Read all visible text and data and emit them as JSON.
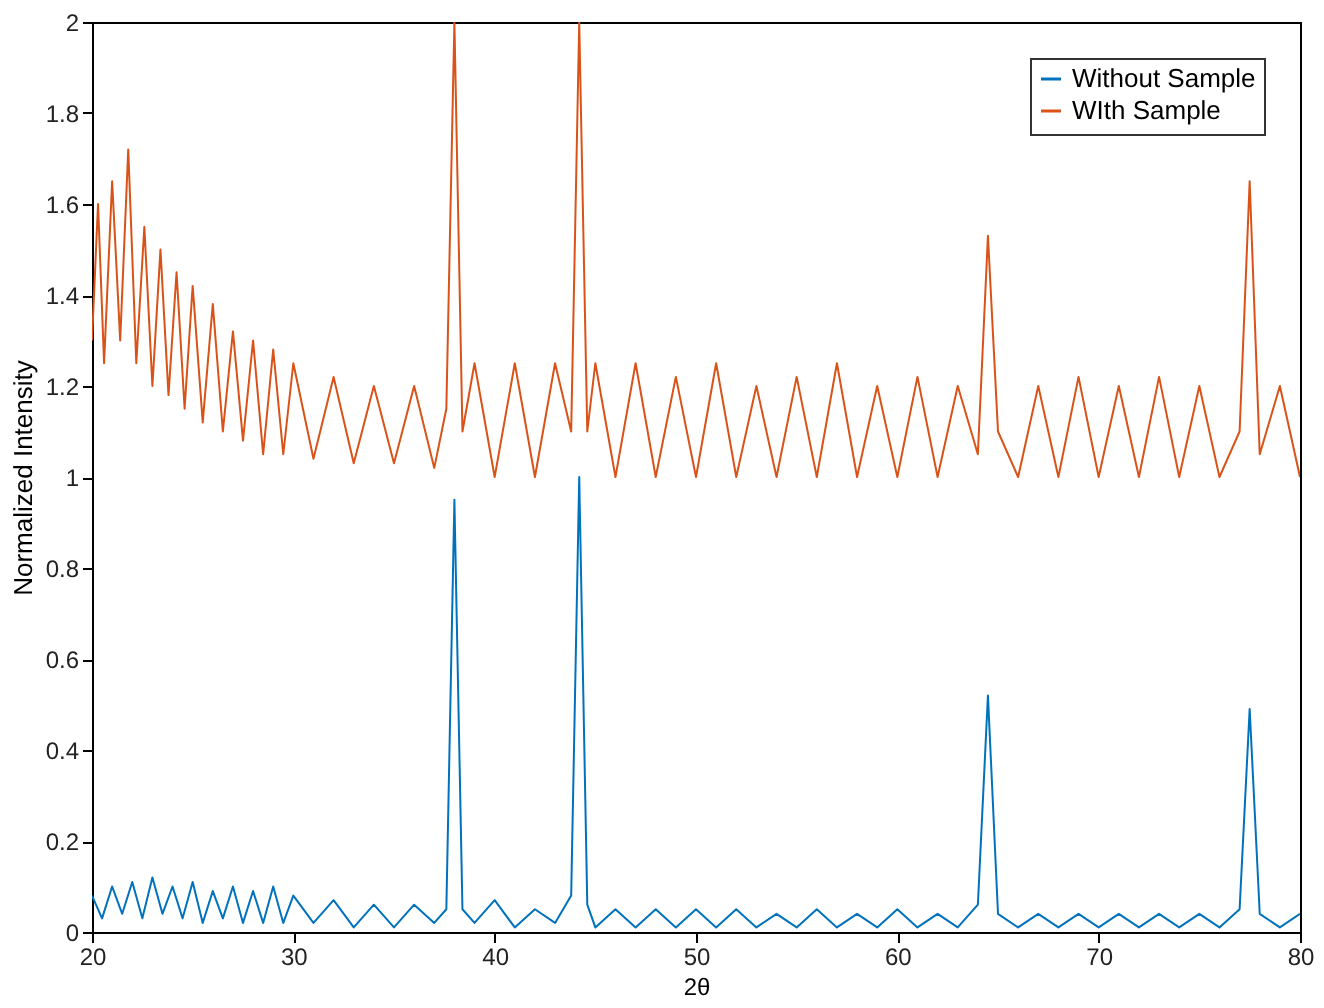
{
  "chart_data": {
    "type": "line",
    "xlabel": "2θ",
    "ylabel": "Normalized Intensity",
    "xlim": [
      20,
      80
    ],
    "xticks": [
      20,
      30,
      40,
      50,
      60,
      70,
      80
    ],
    "ylim": [
      0,
      2
    ],
    "yticks": [
      0,
      0.2,
      0.4,
      0.6,
      0.8,
      1,
      1.2,
      1.4,
      1.6,
      1.8,
      2
    ],
    "grid": false,
    "legend": "top right",
    "line_style": "solid",
    "marker": "none",
    "series": [
      {
        "name": "Without Sample",
        "color": "#0072bd",
        "x": [
          20,
          20.5,
          21,
          21.5,
          22,
          22.5,
          23,
          23.5,
          24,
          24.5,
          25,
          25.5,
          26,
          26.5,
          27,
          27.5,
          28,
          28.5,
          29,
          29.5,
          30,
          31,
          32,
          33,
          34,
          35,
          36,
          37,
          37.6,
          38.0,
          38.4,
          39,
          40,
          41,
          42,
          43,
          43.8,
          44.2,
          44.6,
          45,
          46,
          47,
          48,
          49,
          50,
          51,
          52,
          53,
          54,
          55,
          56,
          57,
          58,
          59,
          60,
          61,
          62,
          63,
          64,
          64.5,
          65,
          66,
          67,
          68,
          69,
          70,
          71,
          72,
          73,
          74,
          75,
          76,
          77,
          77.5,
          78,
          79,
          80
        ],
        "values": [
          0.08,
          0.03,
          0.1,
          0.04,
          0.11,
          0.03,
          0.12,
          0.04,
          0.1,
          0.03,
          0.11,
          0.02,
          0.09,
          0.03,
          0.1,
          0.02,
          0.09,
          0.02,
          0.1,
          0.02,
          0.08,
          0.02,
          0.07,
          0.01,
          0.06,
          0.01,
          0.06,
          0.02,
          0.05,
          0.95,
          0.05,
          0.02,
          0.07,
          0.01,
          0.05,
          0.02,
          0.08,
          1.0,
          0.06,
          0.01,
          0.05,
          0.01,
          0.05,
          0.01,
          0.05,
          0.01,
          0.05,
          0.01,
          0.04,
          0.01,
          0.05,
          0.01,
          0.04,
          0.01,
          0.05,
          0.01,
          0.04,
          0.01,
          0.06,
          0.52,
          0.04,
          0.01,
          0.04,
          0.01,
          0.04,
          0.01,
          0.04,
          0.01,
          0.04,
          0.01,
          0.04,
          0.01,
          0.05,
          0.49,
          0.04,
          0.01,
          0.04
        ]
      },
      {
        "name": "WIth Sample",
        "color": "#d95319",
        "x": [
          20,
          20.3,
          20.6,
          21,
          21.4,
          21.8,
          22.2,
          22.6,
          23,
          23.4,
          23.8,
          24.2,
          24.6,
          25,
          25.5,
          26,
          26.5,
          27,
          27.5,
          28,
          28.5,
          29,
          29.5,
          30,
          31,
          32,
          33,
          34,
          35,
          36,
          37,
          37.6,
          38.0,
          38.4,
          39,
          40,
          41,
          42,
          43,
          43.8,
          44.2,
          44.6,
          45,
          46,
          47,
          48,
          49,
          50,
          51,
          52,
          53,
          54,
          55,
          56,
          57,
          58,
          59,
          60,
          61,
          62,
          63,
          64,
          64.5,
          65,
          66,
          67,
          68,
          69,
          70,
          71,
          72,
          73,
          74,
          75,
          76,
          77,
          77.5,
          78,
          79,
          80
        ],
        "values": [
          1.3,
          1.6,
          1.25,
          1.65,
          1.3,
          1.72,
          1.25,
          1.55,
          1.2,
          1.5,
          1.18,
          1.45,
          1.15,
          1.42,
          1.12,
          1.38,
          1.1,
          1.32,
          1.08,
          1.3,
          1.05,
          1.28,
          1.05,
          1.25,
          1.04,
          1.22,
          1.03,
          1.2,
          1.03,
          1.2,
          1.02,
          1.15,
          2.0,
          1.1,
          1.25,
          1.0,
          1.25,
          1.0,
          1.25,
          1.1,
          2.0,
          1.1,
          1.25,
          1.0,
          1.25,
          1.0,
          1.22,
          1.0,
          1.25,
          1.0,
          1.2,
          1.0,
          1.22,
          1.0,
          1.25,
          1.0,
          1.2,
          1.0,
          1.22,
          1.0,
          1.2,
          1.05,
          1.53,
          1.1,
          1.0,
          1.2,
          1.0,
          1.22,
          1.0,
          1.2,
          1.0,
          1.22,
          1.0,
          1.2,
          1.0,
          1.1,
          1.65,
          1.05,
          1.2,
          1.0
        ]
      }
    ]
  }
}
